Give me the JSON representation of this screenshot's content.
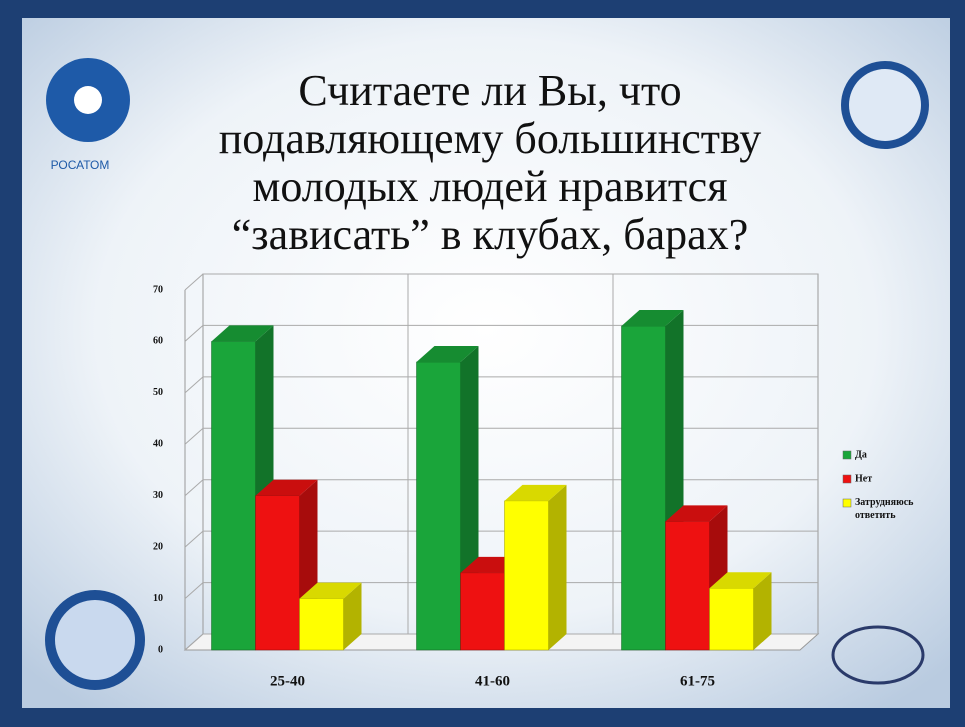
{
  "logo_text": "РОСАТОМ",
  "chart_data": {
    "type": "bar3d",
    "title": [
      "Считаете ли Вы, что",
      "подавляющему большинству",
      "молодых людей нравится",
      "“зависать” в клубах, барах?"
    ],
    "categories": [
      "25-40",
      "41-60",
      "61-75"
    ],
    "series": [
      {
        "name": "Да",
        "color": "#1aa53a",
        "values": [
          60,
          56,
          63
        ]
      },
      {
        "name": "Нет",
        "color": "#ee1111",
        "values": [
          30,
          15,
          25
        ]
      },
      {
        "name": "Затрудняюсь ответить",
        "color": "#ffff00",
        "values": [
          10,
          29,
          12
        ]
      }
    ],
    "ylim": [
      0,
      70
    ],
    "yticks": [
      0,
      10,
      20,
      30,
      40,
      50,
      60,
      70
    ],
    "grid": true,
    "legend": "right"
  }
}
